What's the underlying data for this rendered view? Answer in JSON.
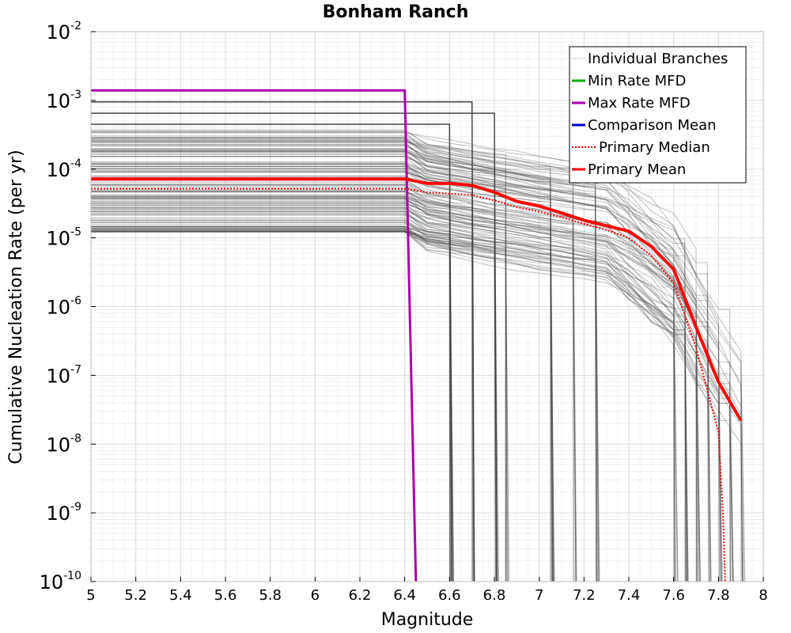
{
  "chart_data": {
    "type": "line",
    "title": "Bonham Ranch",
    "xlabel": "Magnitude",
    "ylabel": "Cumulative Nucleation Rate (per yr)",
    "xlim": [
      5,
      8
    ],
    "ylim": [
      1e-10,
      0.01
    ],
    "yscale": "log",
    "grid": true,
    "x_ticks": [
      "5",
      "5.2",
      "5.4",
      "5.6",
      "5.8",
      "6",
      "6.2",
      "6.4",
      "6.6",
      "6.8",
      "7",
      "7.2",
      "7.4",
      "7.6",
      "7.8",
      "8"
    ],
    "y_ticks": [
      {
        "base": "10",
        "exp": "-10",
        "value": 1e-10
      },
      {
        "base": "10",
        "exp": "-9",
        "value": 1e-09
      },
      {
        "base": "10",
        "exp": "-8",
        "value": 1e-08
      },
      {
        "base": "10",
        "exp": "-7",
        "value": 1e-07
      },
      {
        "base": "10",
        "exp": "-6",
        "value": 1e-06
      },
      {
        "base": "10",
        "exp": "-5",
        "value": 1e-05
      },
      {
        "base": "10",
        "exp": "-4",
        "value": 0.0001
      },
      {
        "base": "10",
        "exp": "-3",
        "value": 0.001
      },
      {
        "base": "10",
        "exp": "-2",
        "value": 0.01
      }
    ],
    "legend": {
      "position": "top-right",
      "entries": [
        {
          "name": "Individual Branches",
          "color": "#cccccc",
          "style": "solid"
        },
        {
          "name": "Min Rate MFD",
          "color": "#00aa00",
          "style": "solid"
        },
        {
          "name": "Max Rate MFD",
          "color": "#aa00aa",
          "style": "solid"
        },
        {
          "name": "Comparison Mean",
          "color": "#0000cc",
          "style": "solid"
        },
        {
          "name": "Primary Median",
          "color": "#ff0000",
          "style": "dotted"
        },
        {
          "name": "Primary Mean",
          "color": "#ff0000",
          "style": "solid"
        }
      ]
    },
    "series": [
      {
        "name": "Max Rate MFD",
        "color": "#aa00aa",
        "x": [
          5,
          6.4,
          6.45
        ],
        "y": [
          0.0014,
          0.0014,
          1e-10
        ]
      },
      {
        "name": "Primary Mean",
        "color": "#ff0000",
        "x": [
          5,
          6.4,
          6.5,
          6.6,
          6.7,
          6.8,
          6.9,
          7.0,
          7.1,
          7.2,
          7.3,
          7.4,
          7.5,
          7.6,
          7.7,
          7.8,
          7.9
        ],
        "y": [
          7.2e-05,
          7.2e-05,
          6.2e-05,
          6.2e-05,
          5.8e-05,
          4.6e-05,
          3.4e-05,
          2.9e-05,
          2.3e-05,
          1.8e-05,
          1.5e-05,
          1.25e-05,
          7.5e-06,
          3.5e-06,
          5e-07,
          8e-08,
          2.2e-08
        ]
      },
      {
        "name": "Primary Median",
        "color": "#ff0000",
        "x": [
          5,
          6.4,
          6.5,
          6.6,
          6.7,
          6.8,
          6.9,
          7.0,
          7.1,
          7.2,
          7.3,
          7.4,
          7.5,
          7.6,
          7.7,
          7.8,
          7.82,
          7.83
        ],
        "y": [
          5.2e-05,
          5.2e-05,
          4.6e-05,
          4.4e-05,
          4.2e-05,
          3.5e-05,
          2.8e-05,
          2.4e-05,
          2e-05,
          1.6e-05,
          1.3e-05,
          1e-05,
          5.5e-06,
          2.2e-06,
          2.5e-07,
          1.5e-08,
          1e-09,
          1e-10
        ]
      }
    ],
    "branch_envelope": {
      "name": "Individual Branches",
      "color": "#4d4d4d",
      "count": 150,
      "plateau_range": [
        1.2e-05,
        0.0004
      ],
      "outliers": [
        0.00095,
        0.00065,
        0.00045
      ],
      "mmax_cutoffs": [
        6.6,
        6.7,
        6.8,
        6.85,
        7.05,
        7.15,
        7.25,
        7.6,
        7.65,
        7.7,
        7.75,
        7.8,
        7.85,
        7.9
      ]
    }
  }
}
